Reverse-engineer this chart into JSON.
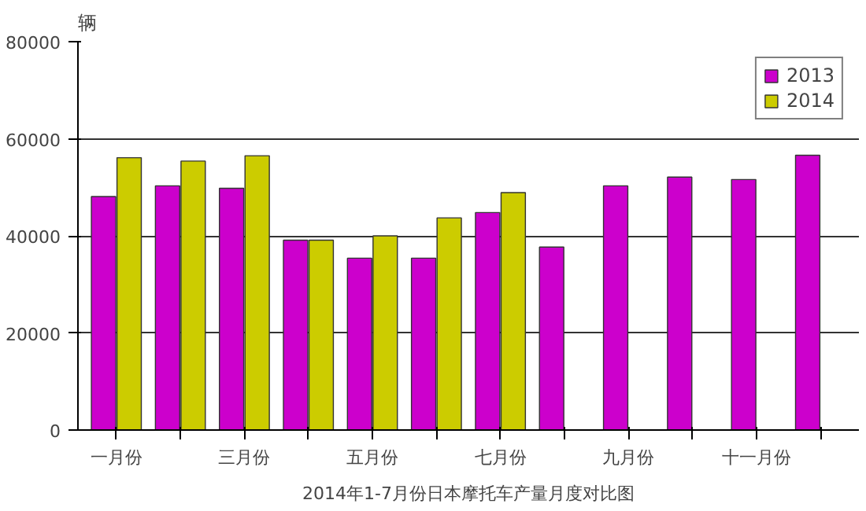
{
  "chart_data": {
    "type": "bar",
    "title": "2014年1-7月份日本摩托车产量月度对比图",
    "ylabel": "辆",
    "categories": [
      "一月份",
      null,
      "三月份",
      null,
      "五月份",
      null,
      "七月份",
      null,
      "九月份",
      null,
      "十一月份",
      null
    ],
    "series": [
      {
        "name": "2013",
        "color": "#cc00cc",
        "values": [
          48100,
          50300,
          49800,
          39100,
          35400,
          35400,
          44800,
          37700,
          50300,
          52100,
          51600,
          56600
        ]
      },
      {
        "name": "2014",
        "color": "#cccc00",
        "values": [
          56100,
          55400,
          56500,
          39100,
          40000,
          43700,
          48900,
          null,
          null,
          null,
          null,
          null
        ]
      }
    ],
    "ylim": [
      0,
      80000
    ],
    "yticks": [
      0,
      20000,
      40000,
      60000,
      80000
    ],
    "grid": "y",
    "legend": "top right"
  }
}
